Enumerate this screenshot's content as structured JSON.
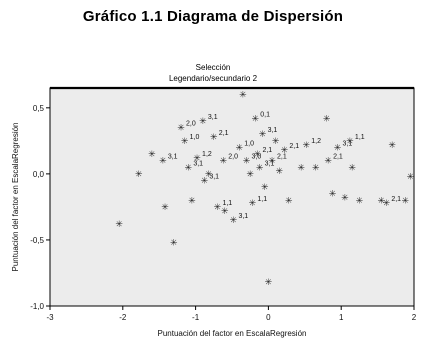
{
  "chart_data": {
    "type": "scatter",
    "title": "Gráfico 1.1 Diagrama de Dispersión",
    "subtitle_lines": [
      "Selección",
      "Legendario/secundario 2"
    ],
    "xlabel": "Puntuación del factor en EscalaRegresión",
    "ylabel": "Puntuación del factor en EscalaRegresión",
    "xlim": [
      -3,
      2
    ],
    "ylim": [
      -1,
      0.65
    ],
    "x_ticks": [
      "-3",
      "-2",
      "-1",
      "0",
      "1",
      "2"
    ],
    "y_ticks": [
      "-1,0",
      "-0,5",
      "0,0",
      "0,5"
    ],
    "grid": false,
    "background": "#ececec",
    "marker_color": "#222222",
    "points": [
      {
        "x": -2.05,
        "y": -0.38,
        "label": ""
      },
      {
        "x": -1.78,
        "y": 0.0,
        "label": ""
      },
      {
        "x": -1.6,
        "y": 0.15,
        "label": ""
      },
      {
        "x": -1.45,
        "y": 0.1,
        "label": "3,1"
      },
      {
        "x": -1.42,
        "y": -0.25,
        "label": ""
      },
      {
        "x": -1.3,
        "y": -0.52,
        "label": ""
      },
      {
        "x": -1.2,
        "y": 0.35,
        "label": "2,0"
      },
      {
        "x": -1.15,
        "y": 0.25,
        "label": "1,0"
      },
      {
        "x": -1.1,
        "y": 0.05,
        "label": "3,1"
      },
      {
        "x": -1.05,
        "y": -0.2,
        "label": ""
      },
      {
        "x": -0.98,
        "y": 0.12,
        "label": "1,2"
      },
      {
        "x": -0.9,
        "y": 0.4,
        "label": "3,1"
      },
      {
        "x": -0.88,
        "y": -0.05,
        "label": "3,1"
      },
      {
        "x": -0.82,
        "y": 0.0,
        "label": ""
      },
      {
        "x": -0.75,
        "y": 0.28,
        "label": "2,1"
      },
      {
        "x": -0.7,
        "y": -0.25,
        "label": "1,1"
      },
      {
        "x": -0.62,
        "y": 0.1,
        "label": "2,0"
      },
      {
        "x": -0.6,
        "y": -0.28,
        "label": ""
      },
      {
        "x": -0.48,
        "y": -0.35,
        "label": "3,1"
      },
      {
        "x": -0.4,
        "y": 0.2,
        "label": "1,0"
      },
      {
        "x": -0.35,
        "y": 0.6,
        "label": ""
      },
      {
        "x": -0.3,
        "y": 0.1,
        "label": "3,0"
      },
      {
        "x": -0.25,
        "y": 0.0,
        "label": ""
      },
      {
        "x": -0.22,
        "y": -0.22,
        "label": "1,1"
      },
      {
        "x": -0.18,
        "y": 0.42,
        "label": "0,1"
      },
      {
        "x": -0.15,
        "y": 0.15,
        "label": "2,1"
      },
      {
        "x": -0.12,
        "y": 0.05,
        "label": "3,1"
      },
      {
        "x": -0.08,
        "y": 0.3,
        "label": "3,1"
      },
      {
        "x": -0.05,
        "y": -0.1,
        "label": ""
      },
      {
        "x": 0.0,
        "y": -0.82,
        "label": ""
      },
      {
        "x": 0.05,
        "y": 0.1,
        "label": "2,1"
      },
      {
        "x": 0.1,
        "y": 0.25,
        "label": ""
      },
      {
        "x": 0.15,
        "y": 0.02,
        "label": ""
      },
      {
        "x": 0.22,
        "y": 0.18,
        "label": "2,1"
      },
      {
        "x": 0.28,
        "y": -0.2,
        "label": ""
      },
      {
        "x": 0.45,
        "y": 0.05,
        "label": ""
      },
      {
        "x": 0.52,
        "y": 0.22,
        "label": "1,2"
      },
      {
        "x": 0.65,
        "y": 0.05,
        "label": ""
      },
      {
        "x": 0.8,
        "y": 0.42,
        "label": ""
      },
      {
        "x": 0.82,
        "y": 0.1,
        "label": "2,1"
      },
      {
        "x": 0.88,
        "y": -0.15,
        "label": ""
      },
      {
        "x": 0.95,
        "y": 0.2,
        "label": "3,1"
      },
      {
        "x": 1.05,
        "y": -0.18,
        "label": ""
      },
      {
        "x": 1.12,
        "y": 0.25,
        "label": "1,1"
      },
      {
        "x": 1.15,
        "y": 0.05,
        "label": ""
      },
      {
        "x": 1.25,
        "y": -0.2,
        "label": ""
      },
      {
        "x": 1.55,
        "y": -0.2,
        "label": ""
      },
      {
        "x": 1.62,
        "y": -0.22,
        "label": "2,1"
      },
      {
        "x": 1.7,
        "y": 0.22,
        "label": ""
      },
      {
        "x": 1.88,
        "y": -0.2,
        "label": ""
      },
      {
        "x": 1.95,
        "y": -0.02,
        "label": ""
      }
    ]
  }
}
